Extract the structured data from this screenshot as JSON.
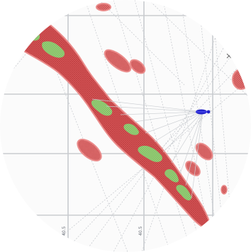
{
  "map": {
    "grid_labels": [
      "40.5",
      "40.5"
    ],
    "colors": {
      "background": "#fbfbfb",
      "gridline": "#c9ccd0",
      "echo_fill": "#d9585a",
      "echo_hatch": "#b93a3c",
      "echo_core": "#98d07a",
      "echo_outline": "#ea8b8a",
      "radar_marker": "#2323c8"
    },
    "markers": {
      "radar_icon": "radar-site-icon"
    }
  }
}
